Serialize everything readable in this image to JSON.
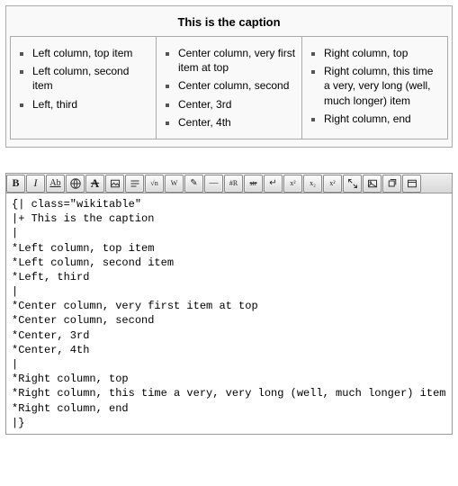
{
  "rendered": {
    "caption": "This is the caption",
    "columns": [
      {
        "items": [
          "Left column, top item",
          "Left column, second item",
          "Left, third"
        ]
      },
      {
        "items": [
          "Center column, very first item at top",
          "Center column, second",
          "Center, 3rd",
          "Center, 4th"
        ]
      },
      {
        "items": [
          "Right column, top",
          "Right column, this time a very, very long (well, much longer) item",
          "Right column, end"
        ]
      }
    ]
  },
  "toolbar": {
    "buttons": [
      {
        "name": "bold",
        "glyph": "B",
        "cls": "b"
      },
      {
        "name": "italic",
        "glyph": "I",
        "cls": "i"
      },
      {
        "name": "underline",
        "glyph": "Ab",
        "cls": "u"
      },
      {
        "name": "globe-link",
        "svg": "globe"
      },
      {
        "name": "strike-a",
        "glyph": "A",
        "cls": "s bigA"
      },
      {
        "name": "image",
        "svg": "image"
      },
      {
        "name": "headline",
        "svg": "bars"
      },
      {
        "name": "sqrt",
        "glyph": "√n",
        "cls": "tiny"
      },
      {
        "name": "nowiki",
        "glyph": "W",
        "cls": "tiny"
      },
      {
        "name": "signature",
        "glyph": "✎",
        "cls": ""
      },
      {
        "name": "hr",
        "glyph": "—",
        "cls": ""
      },
      {
        "name": "redirect",
        "glyph": "#R",
        "cls": "tiny"
      },
      {
        "name": "strike",
        "glyph": "str",
        "cls": "s tiny"
      },
      {
        "name": "linebreak",
        "glyph": "↵",
        "cls": ""
      },
      {
        "name": "sup",
        "glyph": "x²",
        "cls": "tiny"
      },
      {
        "name": "sub",
        "glyph": "x₂",
        "cls": "tiny"
      },
      {
        "name": "sup2",
        "glyph": "x²",
        "cls": "tiny"
      },
      {
        "name": "expand",
        "svg": "expand"
      },
      {
        "name": "picture",
        "svg": "picture"
      },
      {
        "name": "gallery",
        "svg": "gallery"
      },
      {
        "name": "window",
        "svg": "window"
      }
    ]
  },
  "source": "{| class=\"wikitable\"\n|+ This is the caption\n|\n*Left column, top item\n*Left column, second item\n*Left, third\n|\n*Center column, very first item at top\n*Center column, second\n*Center, 3rd\n*Center, 4th\n|\n*Right column, top\n*Right column, this time a very, very long (well, much longer) item\n*Right column, end\n|}"
}
